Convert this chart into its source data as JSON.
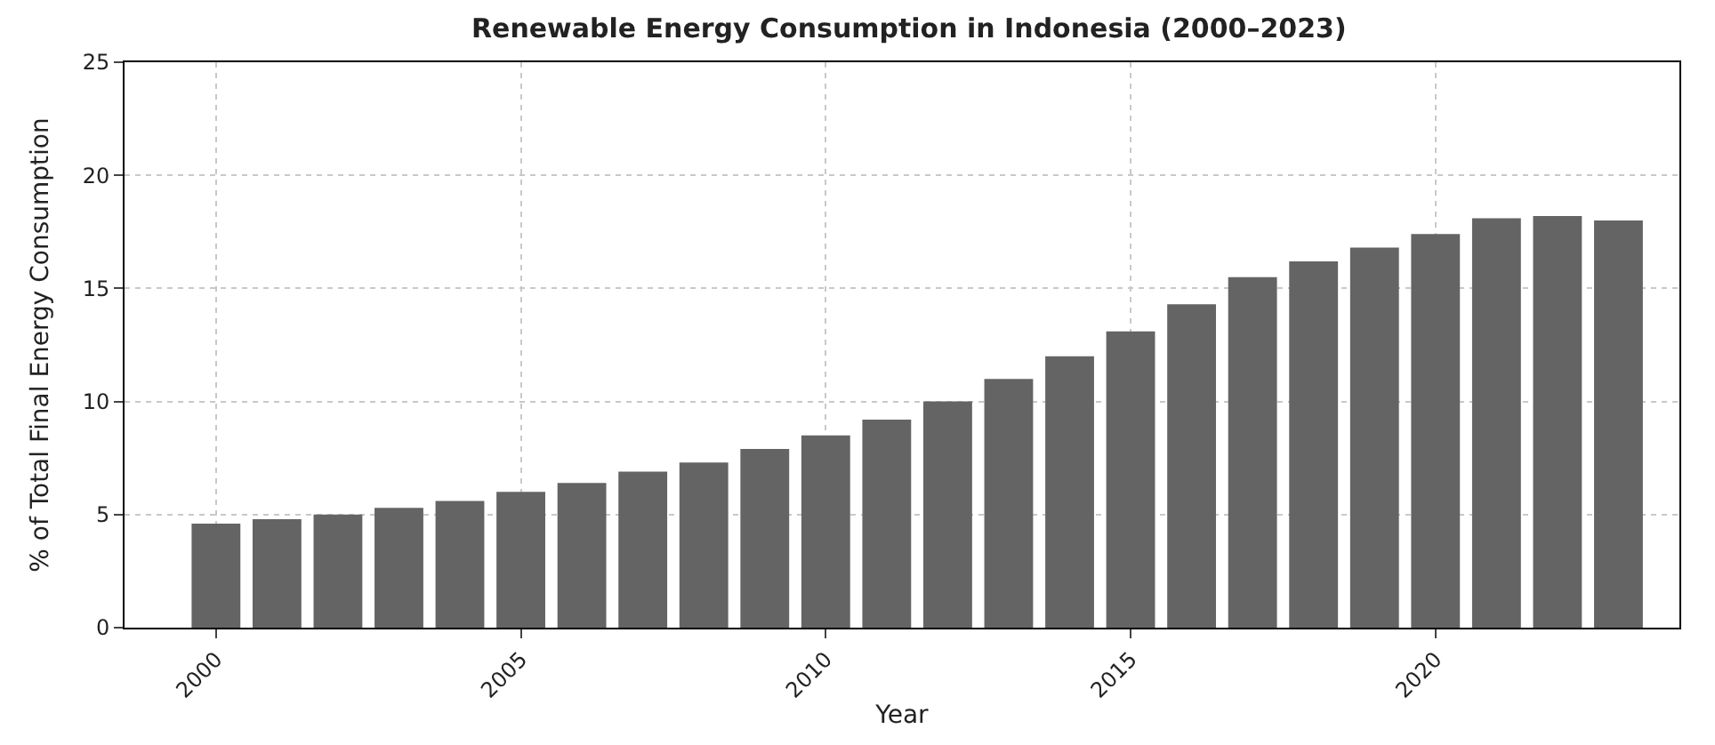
{
  "chart_data": {
    "type": "bar",
    "title": "Renewable Energy Consumption in Indonesia (2000–2023)",
    "xlabel": "Year",
    "ylabel": "% of Total Final Energy Consumption",
    "x": [
      2000,
      2001,
      2002,
      2003,
      2004,
      2005,
      2006,
      2007,
      2008,
      2009,
      2010,
      2011,
      2012,
      2013,
      2014,
      2015,
      2016,
      2017,
      2018,
      2019,
      2020,
      2021,
      2022,
      2023
    ],
    "values": [
      4.6,
      4.8,
      5.0,
      5.3,
      5.6,
      6.0,
      6.4,
      6.9,
      7.3,
      7.9,
      8.5,
      9.2,
      10.0,
      11.0,
      12.0,
      13.1,
      14.3,
      15.5,
      16.2,
      16.8,
      17.4,
      18.1,
      18.2,
      18.0
    ],
    "color": "#646464",
    "xlim": [
      1998.5,
      2024.0
    ],
    "xticks": [
      2000,
      2005,
      2010,
      2015,
      2020
    ],
    "ylim": [
      0,
      25
    ],
    "yticks": [
      0,
      5,
      10,
      15,
      20,
      25
    ],
    "grid": true
  }
}
